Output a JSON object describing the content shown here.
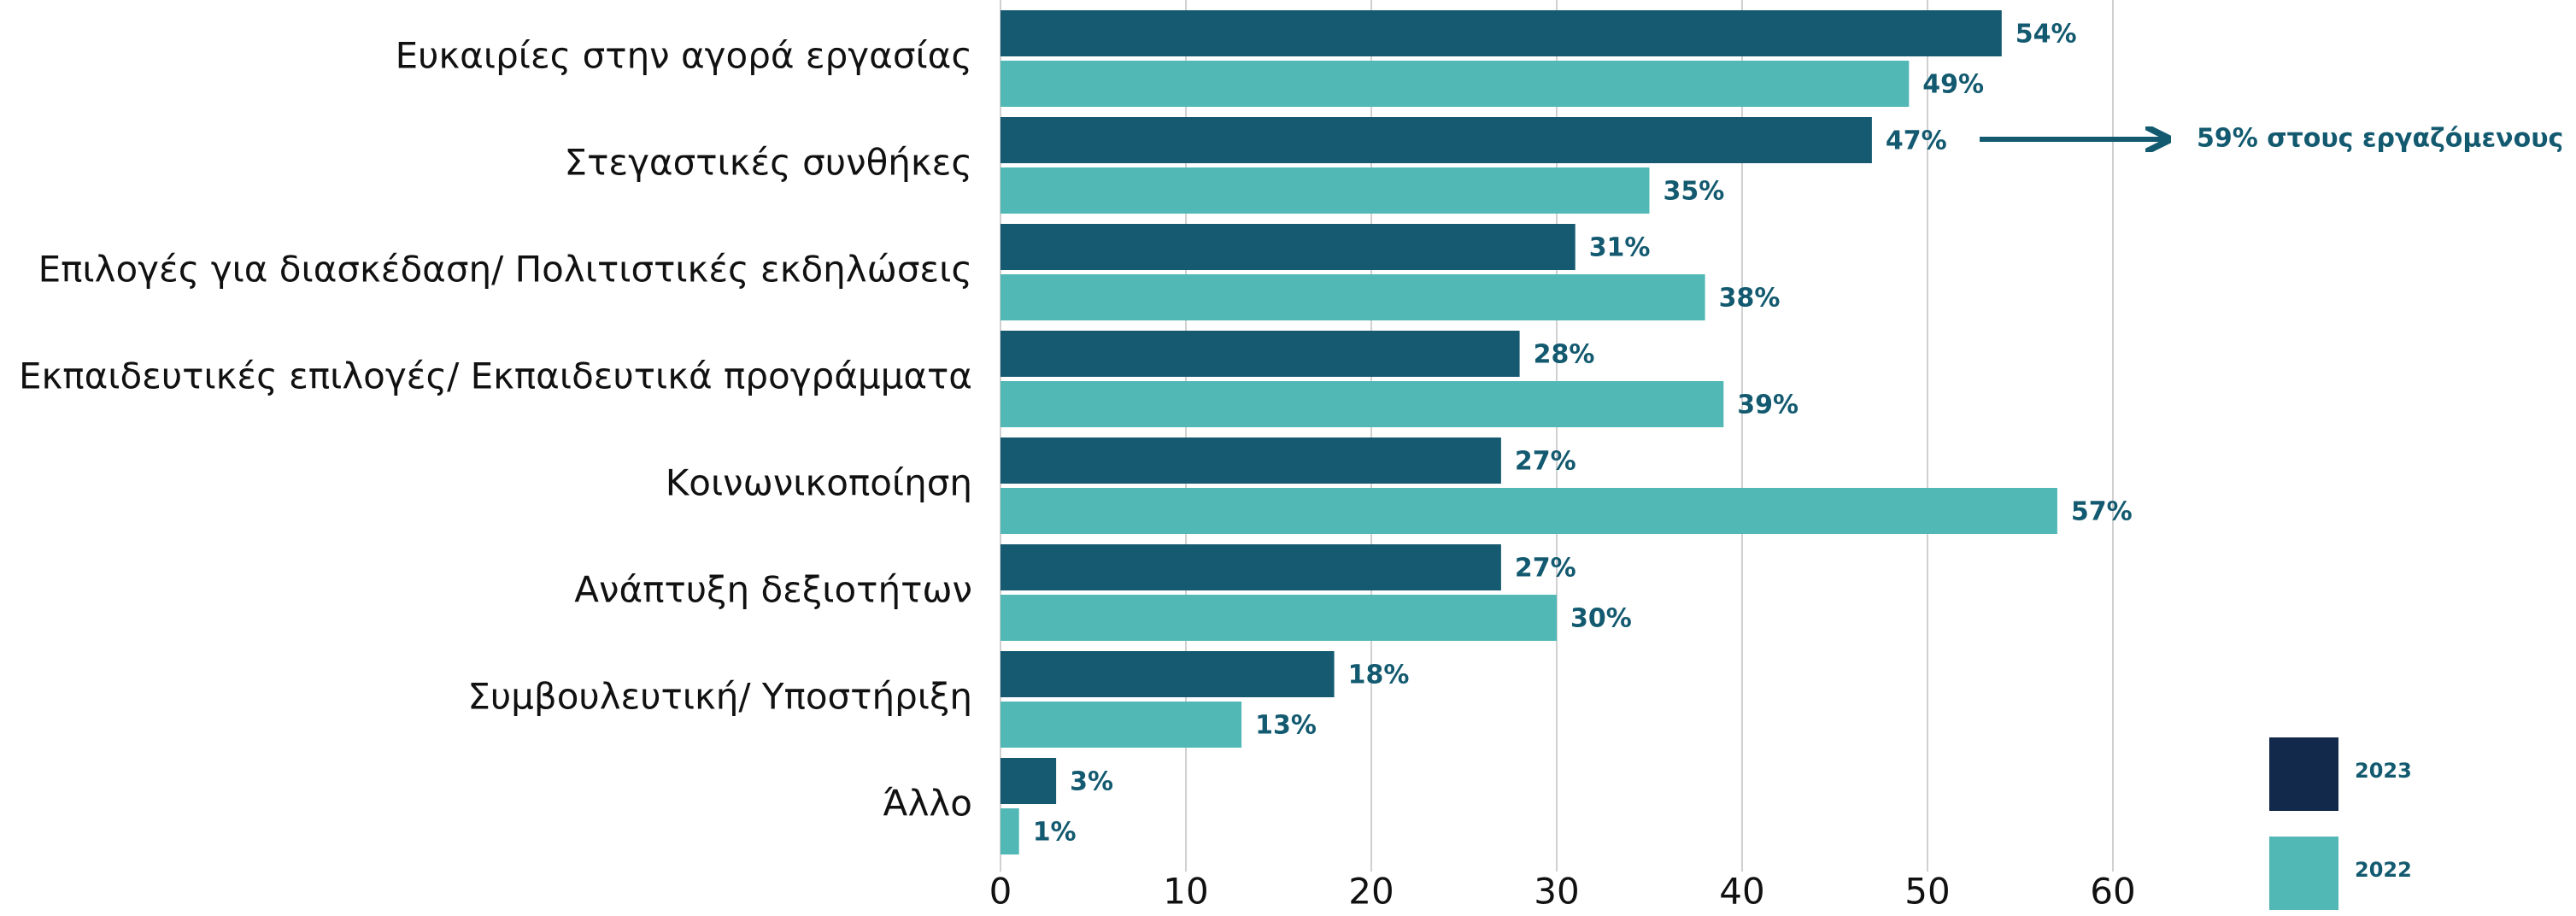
{
  "chart_data": {
    "type": "bar",
    "orientation": "horizontal",
    "categories": [
      "Ευκαιρίες στην αγορά εργασίας",
      "Στεγαστικές συνθήκες",
      "Επιλογές για διασκέδαση/ Πολιτιστικές εκδηλώσεις",
      "Εκπαιδευτικές επιλογές/ Εκπαιδευτικά προγράμματα",
      "Κοινωνικοποίηση",
      "Ανάπτυξη δεξιοτήτων",
      "Συμβουλευτική/ Υποστήριξη",
      "Άλλο"
    ],
    "series": [
      {
        "name": "2023",
        "color": "#155a70",
        "legend_color": "#13294b",
        "values": [
          54,
          47,
          31,
          28,
          27,
          27,
          18,
          3
        ],
        "value_labels": [
          "54%",
          "47%",
          "31%",
          "28%",
          "27%",
          "27%",
          "18%",
          "3%"
        ]
      },
      {
        "name": "2022",
        "color": "#52b8b6",
        "legend_color": "#52b8b6",
        "values": [
          49,
          35,
          38,
          39,
          57,
          30,
          13,
          1
        ],
        "value_labels": [
          "49%",
          "35%",
          "38%",
          "39%",
          "57%",
          "30%",
          "13%",
          "1%"
        ]
      }
    ],
    "xlim": [
      0,
      60
    ],
    "xticks": [
      0,
      10,
      20,
      30,
      40,
      50,
      60
    ],
    "grid": true,
    "annotation": "59% στους εργαζόμενους"
  }
}
